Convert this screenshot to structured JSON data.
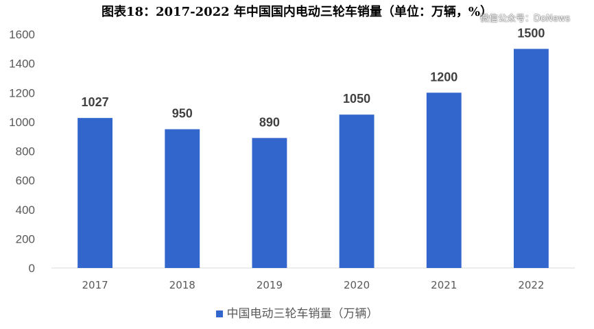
{
  "title": "图表18：2017-2022 年中国国内电动三轮车销量（单位：万辆，%）",
  "watermark": "微信公众号：DoNews",
  "colors": {
    "bar": "#3266CC",
    "axis": "#D9D9D9",
    "text": "#595959"
  },
  "chart_data": {
    "type": "bar",
    "title": "图表18：2017-2022 年中国国内电动三轮车销量（单位：万辆，%）",
    "categories": [
      "2017",
      "2018",
      "2019",
      "2020",
      "2021",
      "2022"
    ],
    "series": [
      {
        "name": "中国电动三轮车销量（万辆）",
        "values": [
          1027,
          950,
          890,
          1050,
          1200,
          1500
        ]
      }
    ],
    "yticks": [
      0,
      200,
      400,
      600,
      800,
      1000,
      1200,
      1400,
      1600
    ],
    "ylim": [
      0,
      1600
    ],
    "grid": false,
    "legend": "bottom",
    "xlabel": "",
    "ylabel": ""
  }
}
